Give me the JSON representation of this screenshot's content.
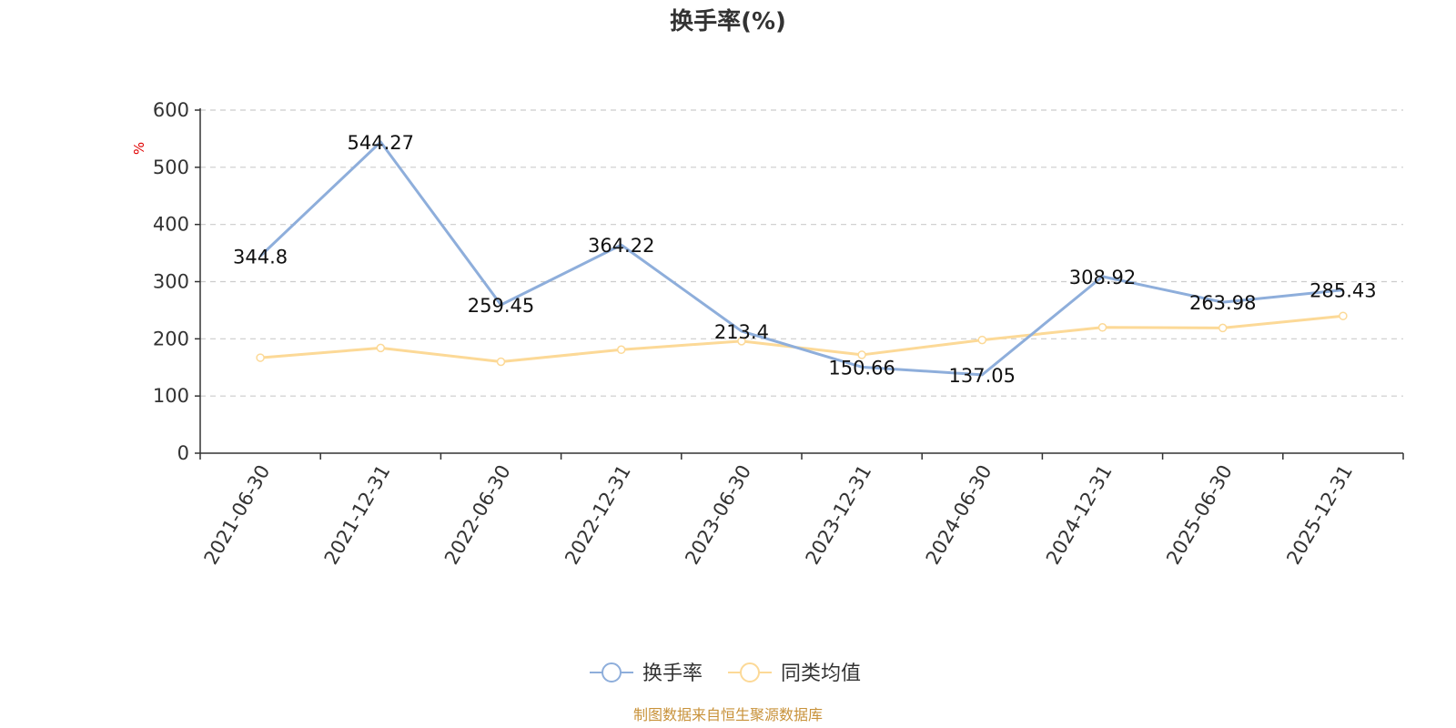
{
  "colors": {
    "series1": "#8eaedb",
    "series2": "#fcd997",
    "unit": "#e00000",
    "source": "#c8923a",
    "grid": "#cccccc",
    "axis": "#333333"
  },
  "source_text": "制图数据来自恒生聚源数据库",
  "chart_data": {
    "type": "line",
    "title": "换手率(%)",
    "ylabel": "%",
    "xlabel": "",
    "ylim": [
      0,
      600
    ],
    "yticks": [
      0,
      100,
      200,
      300,
      400,
      500,
      600
    ],
    "grid": true,
    "legend_position": "bottom",
    "categories": [
      "2021-06-30",
      "2021-12-31",
      "2022-06-30",
      "2022-12-31",
      "2023-06-30",
      "2023-12-31",
      "2024-06-30",
      "2024-12-31",
      "2025-06-30",
      "2025-12-31"
    ],
    "series": [
      {
        "name": "换手率",
        "values": [
          344.8,
          544.27,
          259.45,
          364.22,
          213.4,
          150.66,
          137.05,
          308.92,
          263.98,
          285.43
        ],
        "labels": [
          "344.8",
          "544.27",
          "259.45",
          "364.22",
          "213.4",
          "150.66",
          "137.05",
          "308.92",
          "263.98",
          "285.43"
        ]
      },
      {
        "name": "同类均值",
        "values": [
          167,
          184,
          160,
          181,
          196,
          172,
          198,
          220,
          219,
          240
        ]
      }
    ]
  }
}
